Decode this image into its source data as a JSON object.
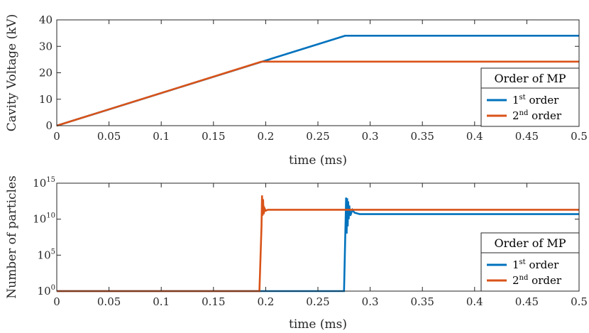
{
  "chart_data": [
    {
      "type": "line",
      "title": "",
      "xlabel": "time (ms)",
      "ylabel": "Cavity Voltage (kV)",
      "xlim": [
        0,
        0.5
      ],
      "ylim": [
        0,
        40
      ],
      "xticks": [
        "0",
        "0.05",
        "0.1",
        "0.15",
        "0.2",
        "0.25",
        "0.3",
        "0.35",
        "0.4",
        "0.45",
        "0.5"
      ],
      "yticks": [
        "0",
        "10",
        "20",
        "30",
        "40"
      ],
      "grid": false,
      "legend": {
        "title": "Order of MP",
        "placement": "bottom-right",
        "entries": [
          {
            "base": "1",
            "sup": "st",
            "rest": " order"
          },
          {
            "base": "2",
            "sup": "nd",
            "rest": " order"
          }
        ]
      },
      "series": [
        {
          "name": "1st order",
          "color": "#0072BD",
          "x": [
            0,
            0.276,
            0.5
          ],
          "y": [
            0,
            34,
            34
          ]
        },
        {
          "name": "2nd order",
          "color": "#D95319",
          "x": [
            0,
            0.196,
            0.5
          ],
          "y": [
            0,
            24.2,
            24.2
          ]
        }
      ]
    },
    {
      "type": "line",
      "title": "",
      "xlabel": "time (ms)",
      "ylabel": "Number of particles",
      "xlim": [
        0,
        0.5
      ],
      "ylim": [
        1,
        1000000000000000.0
      ],
      "yscale": "log",
      "xticks": [
        "0",
        "0.05",
        "0.1",
        "0.15",
        "0.2",
        "0.25",
        "0.3",
        "0.35",
        "0.4",
        "0.45",
        "0.5"
      ],
      "yticks": [
        {
          "base": "10",
          "exp": "0"
        },
        {
          "base": "10",
          "exp": "5"
        },
        {
          "base": "10",
          "exp": "10"
        },
        {
          "base": "10",
          "exp": "15"
        }
      ],
      "grid": false,
      "legend": {
        "title": "Order of MP",
        "placement": "bottom-right",
        "entries": [
          {
            "base": "1",
            "sup": "st",
            "rest": " order"
          },
          {
            "base": "2",
            "sup": "nd",
            "rest": " order"
          }
        ]
      },
      "series": [
        {
          "name": "1st order",
          "color": "#0072BD",
          "x": [
            0,
            0.275,
            0.277,
            0.2775,
            0.278,
            0.2785,
            0.279,
            0.2795,
            0.28,
            0.281,
            0.283,
            0.285,
            0.29,
            0.5
          ],
          "y": [
            1,
            1,
            10000000000000.0,
            100000000.0,
            8000000000000.0,
            1000000000.0,
            3000000000000.0,
            10000000000.0,
            800000000000.0,
            30000000000.0,
            200000000000.0,
            80000000000.0,
            50000000000.0,
            50000000000.0
          ]
        },
        {
          "name": "2nd order",
          "color": "#D95319",
          "x": [
            0,
            0.194,
            0.196,
            0.1965,
            0.197,
            0.1975,
            0.198,
            0.199,
            0.2,
            0.202,
            0.205,
            0.5
          ],
          "y": [
            1,
            1,
            1000000000.0,
            20000000000000.0,
            30000000000.0,
            6000000000000.0,
            50000000000.0,
            300000000000.0,
            150000000000.0,
            200000000000.0,
            200000000000.0,
            200000000000.0
          ]
        }
      ]
    }
  ]
}
